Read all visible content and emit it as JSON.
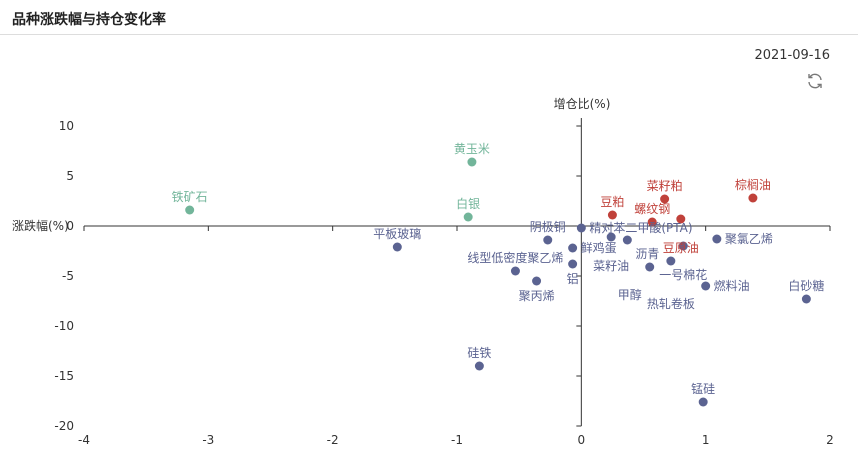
{
  "header": {
    "title": "品种涨跌幅与持仓变化率",
    "date": "2021-09-16",
    "refresh_icon": "refresh-icon"
  },
  "chart_data": {
    "type": "scatter",
    "xlabel": "增仓比(%)",
    "ylabel": "涨跌幅(%)",
    "xlim": [
      -4,
      2
    ],
    "ylim": [
      -20,
      10
    ],
    "xticks": [
      -4,
      -3,
      -2,
      -1,
      0,
      1,
      2
    ],
    "yticks": [
      -20,
      -15,
      -10,
      -5,
      0,
      5,
      10
    ],
    "grid": false,
    "colors": {
      "green": "#72b59a",
      "red": "#c0413a",
      "blue": "#5b6391"
    },
    "points": [
      {
        "name": "铁矿石",
        "x": -3.15,
        "y": 1.6,
        "color": "green"
      },
      {
        "name": "黄玉米",
        "x": -0.88,
        "y": 6.4,
        "color": "green"
      },
      {
        "name": "白银",
        "x": -0.91,
        "y": 0.9,
        "color": "green"
      },
      {
        "name": "平板玻璃",
        "x": -1.48,
        "y": -2.1,
        "color": "blue"
      },
      {
        "name": "硅铁",
        "x": -0.82,
        "y": -14.0,
        "color": "blue"
      },
      {
        "name": "线型低密度聚乙烯",
        "x": -0.53,
        "y": -4.5,
        "color": "blue"
      },
      {
        "name": "聚丙烯",
        "x": -0.36,
        "y": -5.5,
        "color": "blue"
      },
      {
        "name": "阴极铜",
        "x": -0.27,
        "y": -1.4,
        "color": "blue"
      },
      {
        "name": "鲜鸡蛋",
        "x": -0.07,
        "y": -2.2,
        "color": "blue"
      },
      {
        "name": "铝",
        "x": -0.07,
        "y": -3.8,
        "color": "blue"
      },
      {
        "name": "精对苯二甲酸(PTA)",
        "x": 0.0,
        "y": -0.2,
        "color": "blue"
      },
      {
        "name": "豆粕",
        "x": 0.25,
        "y": 1.1,
        "color": "red"
      },
      {
        "name": "菜籽油",
        "x": 0.24,
        "y": -1.1,
        "color": "blue"
      },
      {
        "name": "沥青",
        "x": 0.37,
        "y": -1.4,
        "color": "blue"
      },
      {
        "name": "螺纹钢",
        "x": 0.57,
        "y": 0.4,
        "color": "red"
      },
      {
        "name": "菜籽粕",
        "x": 0.67,
        "y": 2.7,
        "color": "red"
      },
      {
        "name": "豆原油",
        "x": 0.8,
        "y": 0.7,
        "color": "red"
      },
      {
        "name": "棕榈油",
        "x": 1.38,
        "y": 2.8,
        "color": "red"
      },
      {
        "name": "一号棉花",
        "x": 0.82,
        "y": -2.0,
        "color": "blue"
      },
      {
        "name": "聚氯乙烯",
        "x": 1.09,
        "y": -1.3,
        "color": "blue"
      },
      {
        "name": "热轧卷板",
        "x": 0.72,
        "y": -3.5,
        "color": "blue"
      },
      {
        "name": "甲醇",
        "x": 0.55,
        "y": -4.1,
        "color": "blue"
      },
      {
        "name": "燃料油",
        "x": 1.0,
        "y": -6.0,
        "color": "blue"
      },
      {
        "name": "白砂糖",
        "x": 1.81,
        "y": -7.3,
        "color": "blue"
      },
      {
        "name": "锰硅",
        "x": 0.98,
        "y": -17.6,
        "color": "blue"
      }
    ]
  }
}
